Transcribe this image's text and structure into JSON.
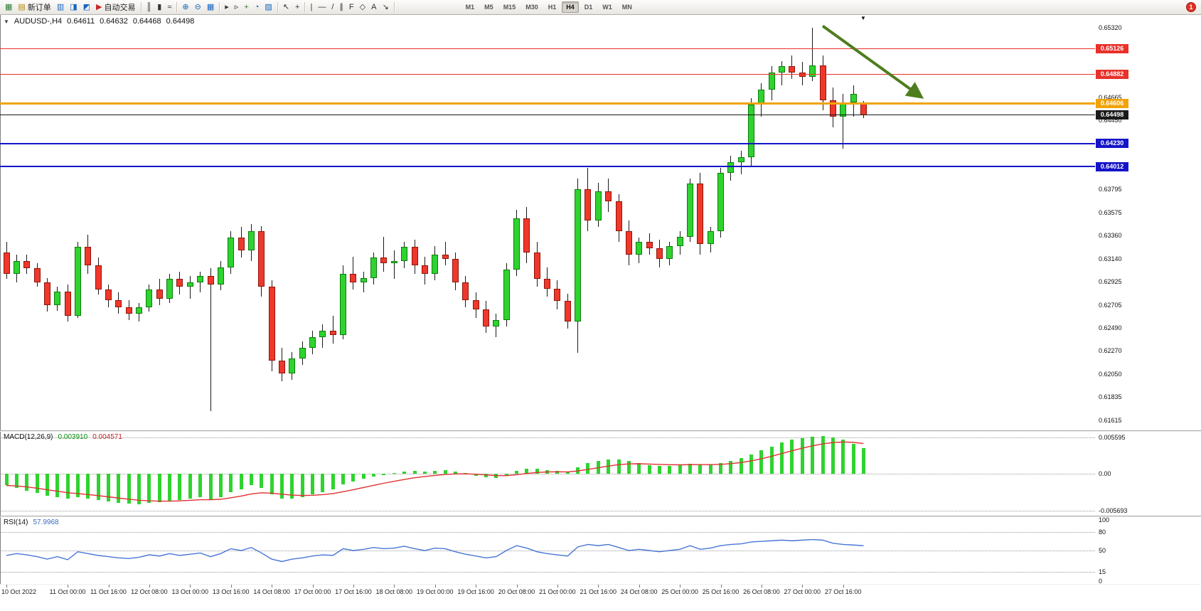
{
  "toolbar": {
    "notification_count": "1",
    "timeframes_active": "H4",
    "items": [
      {
        "icon": "new-chart",
        "glyph": "▦",
        "color": "#2e7d32"
      },
      {
        "icon": "new-order",
        "glyph": "▤",
        "color": "#b8860b",
        "label": "新订单"
      },
      {
        "icon": "chart-profiles",
        "glyph": "▥",
        "color": "#1565c0"
      },
      {
        "icon": "market-watch",
        "glyph": "◨",
        "color": "#1565c0"
      },
      {
        "icon": "data-window",
        "glyph": "◩",
        "color": "#1565c0"
      },
      {
        "icon": "autotrading",
        "glyph": "▶",
        "color": "#c62828",
        "label": "自动交易"
      },
      {
        "sep": true
      },
      {
        "icon": "bar-chart-mode",
        "glyph": "║",
        "color": "#333333"
      },
      {
        "icon": "candlestick-mode",
        "glyph": "▮",
        "color": "#333333"
      },
      {
        "icon": "line-chart-mode",
        "glyph": "≈",
        "color": "#333333"
      },
      {
        "sep": true
      },
      {
        "icon": "zoom-in",
        "glyph": "⊕",
        "color": "#1565c0"
      },
      {
        "icon": "zoom-out",
        "glyph": "⊖",
        "color": "#1565c0"
      },
      {
        "icon": "tile-windows",
        "glyph": "▦",
        "color": "#1565c0"
      },
      {
        "sep": true
      },
      {
        "icon": "auto-scroll",
        "glyph": "▸",
        "color": "#333333"
      },
      {
        "icon": "chart-shift",
        "glyph": "▹",
        "color": "#333333"
      },
      {
        "icon": "indicators",
        "glyph": "+",
        "color": "#2e7d32"
      },
      {
        "icon": "periods",
        "glyph": "◔",
        "color": "#1565c0"
      },
      {
        "icon": "templates",
        "glyph": "▨",
        "color": "#1565c0"
      },
      {
        "sep": true
      },
      {
        "icon": "cursor",
        "glyph": "↖",
        "color": "#333333"
      },
      {
        "icon": "crosshair",
        "glyph": "+",
        "color": "#333333"
      },
      {
        "sep": true
      },
      {
        "icon": "vertical-line-tool",
        "glyph": "|",
        "color": "#333333"
      },
      {
        "icon": "horizontal-line-tool",
        "glyph": "—",
        "color": "#333333"
      },
      {
        "icon": "trendline-tool",
        "glyph": "/",
        "color": "#333333"
      },
      {
        "icon": "channel-tool",
        "glyph": "∥",
        "color": "#333333"
      },
      {
        "icon": "fibonacci-tool",
        "glyph": "F",
        "color": "#333333"
      },
      {
        "icon": "shapes-tool",
        "glyph": "◇",
        "color": "#333333"
      },
      {
        "icon": "text-tool",
        "glyph": "A",
        "color": "#333333"
      },
      {
        "icon": "arrows-tool",
        "glyph": "↘",
        "color": "#333333"
      },
      {
        "sep": true
      },
      {
        "gap": 90
      },
      {
        "tf": "M1"
      },
      {
        "tf": "M5"
      },
      {
        "tf": "M15"
      },
      {
        "tf": "M30"
      },
      {
        "tf": "H1"
      },
      {
        "tf": "H4"
      },
      {
        "tf": "D1"
      },
      {
        "tf": "W1"
      },
      {
        "tf": "MN"
      }
    ]
  },
  "chart": {
    "title": {
      "expander_glyph": "▼",
      "symbol_tf": "AUDUSD-,H4",
      "open": "0.64611",
      "high": "0.64632",
      "low": "0.64468",
      "close": "0.64498"
    },
    "shift_marker_glyph": "▼",
    "price_axis_ticks": [
      "0.65320",
      "0.65105",
      "0.64885",
      "0.64665",
      "0.64450",
      "0.64230",
      "0.64010",
      "0.63795",
      "0.63575",
      "0.63360",
      "0.63140",
      "0.62925",
      "0.62705",
      "0.62490",
      "0.62270",
      "0.62050",
      "0.61835",
      "0.61615"
    ],
    "levels": [
      {
        "label": "0.65126",
        "price": 0.65126,
        "color": "#e8312a",
        "thickness": 1
      },
      {
        "label": "0.64882",
        "price": 0.64882,
        "color": "#e8312a",
        "thickness": 1
      },
      {
        "label": "0.64606",
        "price": 0.64606,
        "color": "#f0a30a",
        "thickness": 3
      },
      {
        "label": "0.64498",
        "price": 0.64498,
        "color": "#1a1a1a",
        "thickness": 1
      },
      {
        "label": "0.64230",
        "price": 0.6423,
        "color": "#1414c8",
        "thickness": 2
      },
      {
        "label": "0.64012",
        "price": 0.64012,
        "color": "#1414c8",
        "thickness": 2
      }
    ],
    "trend_arrow": {
      "from_bar": 80,
      "from_price": 0.6534,
      "to_bar": 89.5,
      "to_price": 0.6468,
      "color": "#4e7d1e"
    },
    "colors": {
      "bull": "#2fd32f",
      "bear": "#ef382b",
      "macd_hist": "#2fd32f",
      "macd_signal": "#e03232",
      "rsi_line": "#4876d6",
      "arrow": "#4e7d1e"
    }
  },
  "chart_data": {
    "type": "candlestick",
    "symbol": "AUDUSD-",
    "timeframe": "H4",
    "last_ohlc": {
      "open": 0.64611,
      "high": 0.64632,
      "low": 0.64468,
      "close": 0.64498
    },
    "price_range": [
      0.61615,
      0.6532
    ],
    "candles_ohlc": [
      [
        0.632,
        0.633,
        0.6295,
        0.63
      ],
      [
        0.63,
        0.6318,
        0.6292,
        0.6312
      ],
      [
        0.6312,
        0.6318,
        0.63,
        0.6305
      ],
      [
        0.6305,
        0.631,
        0.6288,
        0.6292
      ],
      [
        0.6292,
        0.6296,
        0.6264,
        0.627
      ],
      [
        0.627,
        0.6288,
        0.6265,
        0.6283
      ],
      [
        0.6283,
        0.629,
        0.6255,
        0.626
      ],
      [
        0.626,
        0.633,
        0.6258,
        0.6325
      ],
      [
        0.6325,
        0.6337,
        0.63,
        0.6308
      ],
      [
        0.6308,
        0.6315,
        0.628,
        0.6285
      ],
      [
        0.6285,
        0.629,
        0.6268,
        0.6275
      ],
      [
        0.6275,
        0.6282,
        0.6262,
        0.6268
      ],
      [
        0.6268,
        0.6275,
        0.6256,
        0.6262
      ],
      [
        0.6262,
        0.6272,
        0.6255,
        0.6268
      ],
      [
        0.6268,
        0.629,
        0.6264,
        0.6285
      ],
      [
        0.6285,
        0.6295,
        0.627,
        0.6276
      ],
      [
        0.6276,
        0.63,
        0.6272,
        0.6295
      ],
      [
        0.6295,
        0.6302,
        0.628,
        0.6288
      ],
      [
        0.6288,
        0.6298,
        0.6276,
        0.6292
      ],
      [
        0.6292,
        0.6302,
        0.6282,
        0.6298
      ],
      [
        0.6298,
        0.6305,
        0.617,
        0.629
      ],
      [
        0.629,
        0.6312,
        0.6284,
        0.6306
      ],
      [
        0.6306,
        0.634,
        0.63,
        0.6334
      ],
      [
        0.6334,
        0.6344,
        0.6315,
        0.6322
      ],
      [
        0.6322,
        0.6347,
        0.6312,
        0.634
      ],
      [
        0.634,
        0.6345,
        0.6278,
        0.6288
      ],
      [
        0.6288,
        0.6294,
        0.6208,
        0.6218
      ],
      [
        0.6218,
        0.623,
        0.6198,
        0.6206
      ],
      [
        0.6206,
        0.6226,
        0.62,
        0.622
      ],
      [
        0.622,
        0.6236,
        0.6214,
        0.623
      ],
      [
        0.623,
        0.6246,
        0.6224,
        0.624
      ],
      [
        0.624,
        0.6252,
        0.623,
        0.6246
      ],
      [
        0.6246,
        0.626,
        0.6234,
        0.6242
      ],
      [
        0.6242,
        0.6308,
        0.6238,
        0.63
      ],
      [
        0.63,
        0.6316,
        0.6285,
        0.6292
      ],
      [
        0.6292,
        0.6302,
        0.6282,
        0.6296
      ],
      [
        0.6296,
        0.632,
        0.629,
        0.6315
      ],
      [
        0.6315,
        0.6335,
        0.6302,
        0.631
      ],
      [
        0.631,
        0.6322,
        0.6295,
        0.6312
      ],
      [
        0.6312,
        0.633,
        0.6305,
        0.6325
      ],
      [
        0.6325,
        0.6332,
        0.63,
        0.6308
      ],
      [
        0.6308,
        0.6316,
        0.629,
        0.63
      ],
      [
        0.63,
        0.6326,
        0.6294,
        0.6318
      ],
      [
        0.6318,
        0.633,
        0.6308,
        0.6314
      ],
      [
        0.6314,
        0.632,
        0.6284,
        0.6292
      ],
      [
        0.6292,
        0.6298,
        0.6268,
        0.6275
      ],
      [
        0.6275,
        0.6282,
        0.6258,
        0.6266
      ],
      [
        0.6266,
        0.6274,
        0.6244,
        0.625
      ],
      [
        0.625,
        0.6262,
        0.624,
        0.6256
      ],
      [
        0.6256,
        0.631,
        0.625,
        0.6304
      ],
      [
        0.6304,
        0.636,
        0.6298,
        0.6352
      ],
      [
        0.6352,
        0.6363,
        0.631,
        0.632
      ],
      [
        0.632,
        0.633,
        0.6288,
        0.6295
      ],
      [
        0.6295,
        0.6306,
        0.6278,
        0.6286
      ],
      [
        0.6286,
        0.6294,
        0.6266,
        0.6274
      ],
      [
        0.6274,
        0.6281,
        0.6248,
        0.6255
      ],
      [
        0.6255,
        0.639,
        0.6225,
        0.638
      ],
      [
        0.638,
        0.64,
        0.634,
        0.635
      ],
      [
        0.635,
        0.6386,
        0.6344,
        0.6378
      ],
      [
        0.6378,
        0.639,
        0.6358,
        0.6368
      ],
      [
        0.6368,
        0.6375,
        0.633,
        0.634
      ],
      [
        0.634,
        0.635,
        0.6308,
        0.6318
      ],
      [
        0.6318,
        0.6334,
        0.631,
        0.633
      ],
      [
        0.633,
        0.6338,
        0.6318,
        0.6324
      ],
      [
        0.6324,
        0.6332,
        0.6306,
        0.6314
      ],
      [
        0.6314,
        0.633,
        0.6308,
        0.6326
      ],
      [
        0.6326,
        0.634,
        0.6318,
        0.6335
      ],
      [
        0.6335,
        0.639,
        0.633,
        0.6385
      ],
      [
        0.6385,
        0.6395,
        0.6318,
        0.6328
      ],
      [
        0.6328,
        0.6344,
        0.632,
        0.634
      ],
      [
        0.634,
        0.64,
        0.6334,
        0.6395
      ],
      [
        0.6395,
        0.6411,
        0.6388,
        0.6405
      ],
      [
        0.6405,
        0.6416,
        0.6394,
        0.641
      ],
      [
        0.641,
        0.6466,
        0.6402,
        0.646
      ],
      [
        0.646,
        0.648,
        0.6448,
        0.6474
      ],
      [
        0.6474,
        0.6496,
        0.6464,
        0.649
      ],
      [
        0.649,
        0.6501,
        0.6478,
        0.6496
      ],
      [
        0.6496,
        0.6506,
        0.6484,
        0.649
      ],
      [
        0.649,
        0.65,
        0.6478,
        0.6486
      ],
      [
        0.6486,
        0.6532,
        0.6482,
        0.6497
      ],
      [
        0.6497,
        0.6506,
        0.6454,
        0.6464
      ],
      [
        0.6464,
        0.6476,
        0.6438,
        0.6448
      ],
      [
        0.6448,
        0.647,
        0.6418,
        0.6462
      ],
      [
        0.6462,
        0.6478,
        0.6448,
        0.647
      ],
      [
        0.64611,
        0.64632,
        0.64468,
        0.64498
      ]
    ],
    "macd": {
      "label": "MACD(12,26,9)",
      "value_main": "0.003910",
      "value_signal": "0.004571",
      "scale_labels": [
        "0.005595",
        "0.00",
        "-0.005693"
      ],
      "values": [
        -0.0018,
        -0.0022,
        -0.0026,
        -0.003,
        -0.0034,
        -0.0036,
        -0.0038,
        -0.0036,
        -0.0038,
        -0.004,
        -0.0043,
        -0.0045,
        -0.0046,
        -0.0047,
        -0.0045,
        -0.0044,
        -0.0042,
        -0.004,
        -0.0038,
        -0.0036,
        -0.004,
        -0.0036,
        -0.0028,
        -0.0024,
        -0.0018,
        -0.0022,
        -0.0032,
        -0.0038,
        -0.0038,
        -0.0036,
        -0.0032,
        -0.0028,
        -0.0024,
        -0.0016,
        -0.0012,
        -0.0008,
        -0.0004,
        -0.0002,
        0.0,
        0.0003,
        0.0004,
        0.0003,
        0.0004,
        0.0005,
        0.0003,
        0.0,
        -0.0003,
        -0.0006,
        -0.0007,
        -0.0003,
        0.0004,
        0.0008,
        0.0008,
        0.0006,
        0.0004,
        0.0002,
        0.001,
        0.0016,
        0.002,
        0.0022,
        0.0022,
        0.002,
        0.0016,
        0.0013,
        0.0012,
        0.0012,
        0.0013,
        0.0015,
        0.0014,
        0.0014,
        0.0016,
        0.002,
        0.0024,
        0.003,
        0.0036,
        0.0042,
        0.0048,
        0.0052,
        0.0055,
        0.0057,
        0.0058,
        0.0056,
        0.0052,
        0.0046,
        0.0039
      ]
    },
    "rsi": {
      "label": "RSI(14)",
      "value": "57.9968",
      "levels": [
        80,
        50,
        15
      ],
      "scale_labels": [
        "100",
        "80",
        "50",
        "15",
        "0"
      ],
      "values": [
        42,
        45,
        43,
        40,
        36,
        40,
        35,
        48,
        45,
        42,
        40,
        38,
        37,
        39,
        43,
        41,
        45,
        42,
        44,
        46,
        40,
        45,
        53,
        50,
        55,
        46,
        36,
        32,
        36,
        38,
        41,
        43,
        42,
        53,
        50,
        52,
        55,
        53,
        54,
        57,
        53,
        50,
        54,
        53,
        48,
        44,
        41,
        38,
        40,
        50,
        58,
        54,
        48,
        45,
        43,
        41,
        56,
        60,
        58,
        60,
        55,
        50,
        52,
        50,
        48,
        50,
        52,
        58,
        52,
        54,
        58,
        60,
        61,
        64,
        65,
        66,
        67,
        66,
        67,
        68,
        67,
        62,
        60,
        59,
        57.9968
      ]
    },
    "time_labels": [
      {
        "bar": 0,
        "label": "10 Oct 2022"
      },
      {
        "bar": 6,
        "label": "11 Oct 00:00"
      },
      {
        "bar": 10,
        "label": "11 Oct 16:00"
      },
      {
        "bar": 14,
        "label": "12 Oct 08:00"
      },
      {
        "bar": 18,
        "label": "13 Oct 00:00"
      },
      {
        "bar": 22,
        "label": "13 Oct 16:00"
      },
      {
        "bar": 26,
        "label": "14 Oct 08:00"
      },
      {
        "bar": 30,
        "label": "17 Oct 00:00"
      },
      {
        "bar": 34,
        "label": "17 Oct 16:00"
      },
      {
        "bar": 38,
        "label": "18 Oct 08:00"
      },
      {
        "bar": 42,
        "label": "19 Oct 00:00"
      },
      {
        "bar": 46,
        "label": "19 Oct 16:00"
      },
      {
        "bar": 50,
        "label": "20 Oct 08:00"
      },
      {
        "bar": 54,
        "label": "21 Oct 00:00"
      },
      {
        "bar": 58,
        "label": "21 Oct 16:00"
      },
      {
        "bar": 62,
        "label": "24 Oct 08:00"
      },
      {
        "bar": 66,
        "label": "25 Oct 00:00"
      },
      {
        "bar": 70,
        "label": "25 Oct 16:00"
      },
      {
        "bar": 74,
        "label": "26 Oct 08:00"
      },
      {
        "bar": 78,
        "label": "27 Oct 00:00"
      },
      {
        "bar": 82,
        "label": "27 Oct 16:00"
      }
    ]
  }
}
